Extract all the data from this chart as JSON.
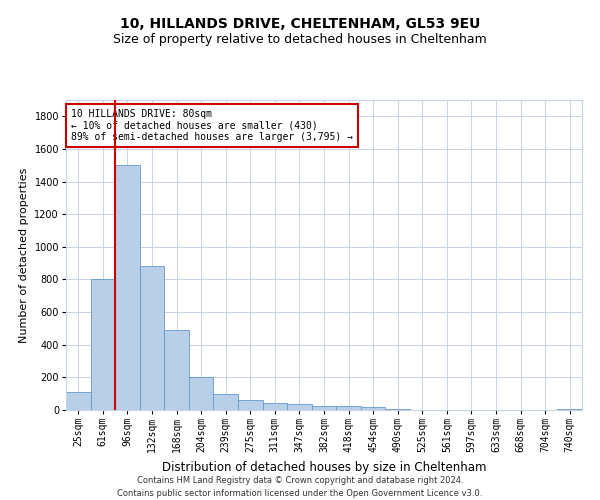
{
  "title1": "10, HILLANDS DRIVE, CHELTENHAM, GL53 9EU",
  "title2": "Size of property relative to detached houses in Cheltenham",
  "xlabel": "Distribution of detached houses by size in Cheltenham",
  "ylabel": "Number of detached properties",
  "categories": [
    "25sqm",
    "61sqm",
    "96sqm",
    "132sqm",
    "168sqm",
    "204sqm",
    "239sqm",
    "275sqm",
    "311sqm",
    "347sqm",
    "382sqm",
    "418sqm",
    "454sqm",
    "490sqm",
    "525sqm",
    "561sqm",
    "597sqm",
    "633sqm",
    "668sqm",
    "704sqm",
    "740sqm"
  ],
  "values": [
    110,
    800,
    1500,
    880,
    490,
    205,
    100,
    60,
    45,
    35,
    25,
    25,
    20,
    5,
    3,
    2,
    2,
    1,
    1,
    1,
    5
  ],
  "bar_color": "#b8cfe8",
  "bar_edge_color": "#6699cc",
  "vline_color": "#cc0000",
  "vline_x": 1.5,
  "annotation_text": "10 HILLANDS DRIVE: 80sqm\n← 10% of detached houses are smaller (430)\n89% of semi-detached houses are larger (3,795) →",
  "annotation_box_color": "#ffffff",
  "annotation_box_edge": "#cc0000",
  "ylim": [
    0,
    1900
  ],
  "yticks": [
    0,
    200,
    400,
    600,
    800,
    1000,
    1200,
    1400,
    1600,
    1800
  ],
  "grid_color": "#c8d4e4",
  "footnote": "Contains HM Land Registry data © Crown copyright and database right 2024.\nContains public sector information licensed under the Open Government Licence v3.0.",
  "title1_fontsize": 10,
  "title2_fontsize": 9,
  "xlabel_fontsize": 8.5,
  "ylabel_fontsize": 8,
  "tick_fontsize": 7,
  "annotation_fontsize": 7,
  "footnote_fontsize": 6
}
